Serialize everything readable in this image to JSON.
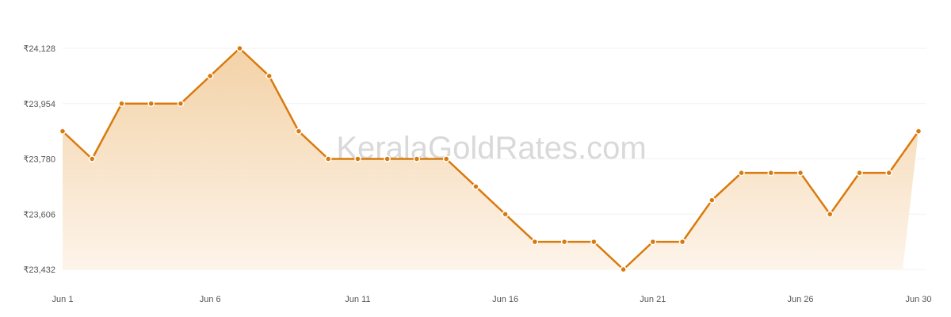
{
  "watermark": "KeralaGoldRates.com",
  "colors": {
    "line": "#d97a0c",
    "area_top": "#f3d2a7",
    "area_bottom": "#fdf4ea",
    "grid": "#f2f2f2",
    "marker_fill": "#d97a0c",
    "marker_stroke": "#ffffff",
    "tick_text": "#555555",
    "watermark": "#d9d9d9"
  },
  "chart_data": {
    "type": "area",
    "title": "",
    "xlabel": "",
    "ylabel": "",
    "grid": true,
    "legend": "none",
    "x": [
      1,
      2,
      3,
      4,
      5,
      6,
      7,
      8,
      9,
      10,
      11,
      12,
      13,
      14,
      15,
      16,
      17,
      18,
      19,
      20,
      21,
      22,
      23,
      24,
      25,
      26,
      27,
      28,
      29,
      30
    ],
    "x_tick_values": [
      1,
      6,
      11,
      16,
      21,
      26,
      30
    ],
    "x_tick_labels": [
      "Jun 1",
      "Jun 6",
      "Jun 11",
      "Jun 16",
      "Jun 21",
      "Jun 26",
      "Jun 30"
    ],
    "y_tick_values": [
      23432,
      23606,
      23780,
      23954,
      24128
    ],
    "y_tick_labels": [
      "₹23,432",
      "₹23,606",
      "₹23,780",
      "₹23,954",
      "₹24,128"
    ],
    "ylim": [
      23432,
      24128
    ],
    "series": [
      {
        "values": [
          23867,
          23780,
          23954,
          23954,
          23954,
          24041,
          24128,
          24041,
          23867,
          23780,
          23780,
          23780,
          23780,
          23780,
          23693,
          23606,
          23519,
          23519,
          23519,
          23432,
          23519,
          23519,
          23650,
          23736,
          23736,
          23736,
          23606,
          23736,
          23736,
          23867
        ]
      }
    ]
  }
}
